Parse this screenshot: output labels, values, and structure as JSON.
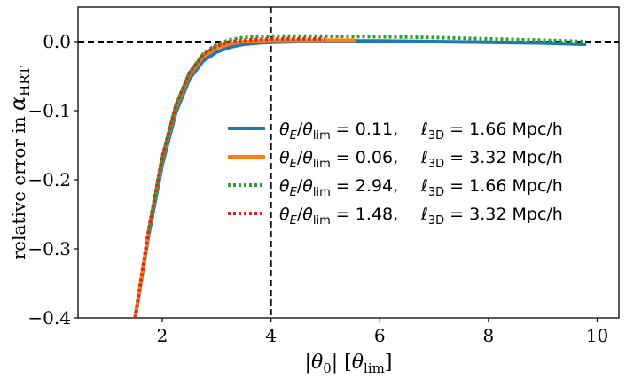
{
  "chart_data": {
    "type": "line",
    "title": "",
    "xlabel": "|θ0| [θlim]",
    "ylabel": "relative error in αHRT",
    "xlim": [
      0.45,
      10.4
    ],
    "ylim": [
      -0.4,
      0.05
    ],
    "grid": false,
    "legend_position": "center-right",
    "x_ticks": [
      {
        "value": 2,
        "label": "2"
      },
      {
        "value": 4,
        "label": "4"
      },
      {
        "value": 6,
        "label": "6"
      },
      {
        "value": 8,
        "label": "8"
      },
      {
        "value": 10,
        "label": "10"
      }
    ],
    "y_ticks": [
      {
        "value": 0.0,
        "label": "0.0"
      },
      {
        "value": -0.1,
        "label": "−0.1"
      },
      {
        "value": -0.2,
        "label": "−0.2"
      },
      {
        "value": -0.3,
        "label": "−0.3"
      },
      {
        "value": -0.4,
        "label": "−0.4"
      }
    ],
    "reference_lines": [
      {
        "orientation": "horizontal",
        "value": 0.0,
        "style": "dashed",
        "color": "#000000"
      },
      {
        "orientation": "vertical",
        "value": 4.0,
        "style": "dashed",
        "color": "#000000"
      }
    ],
    "series": [
      {
        "name": "θE/θlim = 0.11,   ℓ3D = 1.66 Mpc/h",
        "legend_ratio": "0.11,",
        "legend_ell": "1.66",
        "color": "#1f77b4",
        "style": "solid",
        "width": 4,
        "x": [
          1.5,
          1.75,
          2.0,
          2.25,
          2.5,
          2.75,
          3.0,
          3.25,
          3.5,
          3.75,
          4.0,
          4.5,
          5.0,
          6.0,
          7.0,
          8.0,
          9.0,
          9.8
        ],
        "y": [
          -0.4,
          -0.28,
          -0.178,
          -0.102,
          -0.054,
          -0.028,
          -0.015,
          -0.008,
          -0.004,
          -0.002,
          -0.001,
          0.0,
          0.001,
          0.001,
          0.0,
          -0.001,
          -0.002,
          -0.004
        ]
      },
      {
        "name": "θE/θlim = 0.06,   ℓ3D = 3.32 Mpc/h",
        "legend_ratio": "0.06,",
        "legend_ell": "3.32",
        "color": "#ff7f0e",
        "style": "solid",
        "width": 4,
        "x": [
          1.5,
          1.75,
          2.0,
          2.25,
          2.5,
          2.75,
          3.0,
          3.25,
          3.5,
          3.75,
          4.0,
          4.5,
          5.0,
          5.55
        ],
        "y": [
          -0.4,
          -0.275,
          -0.17,
          -0.095,
          -0.048,
          -0.022,
          -0.009,
          -0.003,
          0.0,
          0.001,
          0.002,
          0.002,
          0.002,
          0.002
        ]
      },
      {
        "name": "θE/θlim = 2.94,   ℓ3D = 1.66 Mpc/h",
        "legend_ratio": "2.94,",
        "legend_ell": "1.66",
        "color": "#2ca02c",
        "style": "dotted",
        "width": 4,
        "x": [
          1.75,
          2.0,
          2.25,
          2.5,
          2.75,
          3.0,
          3.25,
          3.5,
          3.75,
          4.0,
          4.5,
          5.0,
          6.0,
          7.0,
          8.0,
          9.0,
          9.8
        ],
        "y": [
          -0.275,
          -0.168,
          -0.092,
          -0.045,
          -0.018,
          -0.004,
          0.003,
          0.006,
          0.007,
          0.008,
          0.008,
          0.008,
          0.007,
          0.006,
          0.004,
          0.002,
          0.0
        ]
      },
      {
        "name": "θE/θlim = 1.48,   ℓ3D = 3.32 Mpc/h",
        "legend_ratio": "1.48,",
        "legend_ell": "3.32",
        "color": "#d62728",
        "style": "dotted",
        "width": 4,
        "x": [
          1.5,
          1.75,
          2.0,
          2.25,
          2.5,
          2.75,
          3.0,
          3.25,
          3.5,
          3.75,
          4.0,
          4.5,
          5.0
        ],
        "y": [
          -0.4,
          -0.272,
          -0.167,
          -0.092,
          -0.045,
          -0.019,
          -0.006,
          0.0,
          0.002,
          0.003,
          0.004,
          0.004,
          0.004
        ]
      }
    ]
  }
}
